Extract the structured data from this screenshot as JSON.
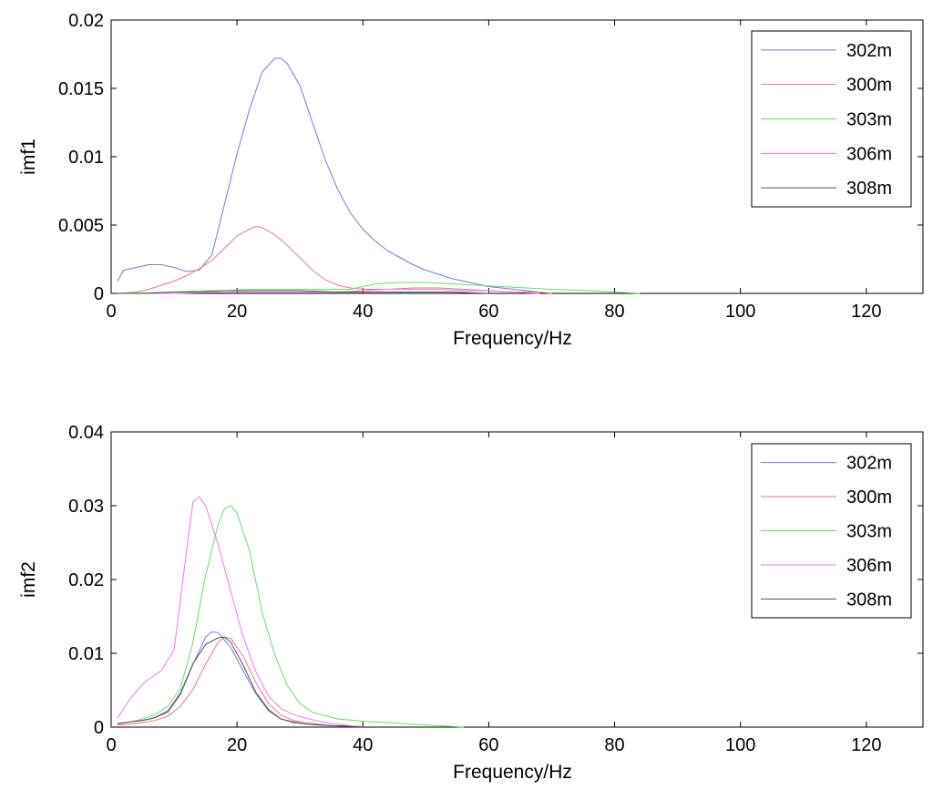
{
  "chart_data": [
    {
      "type": "line",
      "xlabel": "Frequency/Hz",
      "ylabel": "imf1",
      "xlim": [
        0,
        129
      ],
      "ylim": [
        0,
        0.02
      ],
      "xticks": [
        0,
        20,
        40,
        60,
        80,
        100,
        120
      ],
      "yticks": [
        0,
        0.005,
        0.01,
        0.015,
        0.02
      ],
      "ytick_labels": [
        "0",
        "0.005",
        "0.01",
        "0.015",
        "0.02"
      ],
      "grid": false,
      "legend_position": "top-right",
      "series": [
        {
          "name": "302m",
          "color": "#7777dd",
          "x": [
            1,
            2,
            4,
            6,
            8,
            10,
            12,
            14,
            16,
            18,
            20,
            22,
            24,
            26,
            27,
            28,
            30,
            32,
            34,
            36,
            38,
            40,
            42,
            44,
            46,
            48,
            50,
            52,
            54,
            56,
            58,
            60,
            62,
            64,
            66,
            68
          ],
          "y": [
            0.0009,
            0.0017,
            0.0019,
            0.0021,
            0.0021,
            0.0019,
            0.0016,
            0.0017,
            0.0028,
            0.0065,
            0.0102,
            0.0135,
            0.0162,
            0.0172,
            0.0172,
            0.0168,
            0.0152,
            0.0125,
            0.0098,
            0.0076,
            0.0059,
            0.0047,
            0.0038,
            0.0031,
            0.0026,
            0.0021,
            0.0017,
            0.0014,
            0.0011,
            0.0009,
            0.0007,
            0.0005,
            0.0004,
            0.0003,
            0.0002,
            0.0001
          ]
        },
        {
          "name": "300m",
          "color": "#ee7777",
          "x": [
            1,
            4,
            6,
            8,
            10,
            12,
            14,
            16,
            18,
            20,
            22,
            23,
            24,
            26,
            28,
            30,
            32,
            34,
            36,
            38,
            40,
            44,
            48,
            52,
            56,
            60,
            64,
            68,
            70
          ],
          "y": [
            0,
            0.0001,
            0.0003,
            0.0006,
            0.0009,
            0.0013,
            0.0018,
            0.0024,
            0.0033,
            0.0042,
            0.0047,
            0.0049,
            0.0048,
            0.0043,
            0.0035,
            0.0026,
            0.0017,
            0.001,
            0.0006,
            0.0004,
            0.0003,
            0.0003,
            0.0004,
            0.0004,
            0.0003,
            0.0002,
            0.0001,
            0.0001,
            0
          ]
        },
        {
          "name": "303m",
          "color": "#66dd66",
          "x": [
            1,
            10,
            14,
            18,
            22,
            26,
            30,
            34,
            38,
            42,
            46,
            50,
            54,
            58,
            62,
            66,
            70,
            76,
            80,
            84
          ],
          "y": [
            0,
            0.0001,
            0.0002,
            0.0002,
            0.0003,
            0.0003,
            0.0003,
            0.0003,
            0.0003,
            0.0007,
            0.0008,
            0.0008,
            0.0007,
            0.0006,
            0.0005,
            0.0004,
            0.0003,
            0.0002,
            0.0001,
            0
          ]
        },
        {
          "name": "306m",
          "color": "#ee77ee",
          "x": [
            1,
            10,
            20,
            30,
            36,
            40,
            44,
            48,
            52,
            56,
            60,
            64,
            68
          ],
          "y": [
            0,
            0,
            0.0001,
            0.0001,
            0.0001,
            0.0002,
            0.0003,
            0.0003,
            0.0003,
            0.0002,
            0.0002,
            0.0001,
            0
          ]
        },
        {
          "name": "308m",
          "color": "#555555",
          "x": [
            1,
            6,
            10,
            14,
            18,
            22,
            26,
            30,
            36,
            40,
            44,
            48,
            54,
            60
          ],
          "y": [
            0,
            0,
            0.0001,
            0.0001,
            0.0002,
            0.0002,
            0.0002,
            0.0002,
            0.0001,
            0.0001,
            0.0001,
            0.0001,
            0.0001,
            0
          ]
        }
      ]
    },
    {
      "type": "line",
      "xlabel": "Frequency/Hz",
      "ylabel": "imf2",
      "xlim": [
        0,
        129
      ],
      "ylim": [
        0,
        0.04
      ],
      "xticks": [
        0,
        20,
        40,
        60,
        80,
        100,
        120
      ],
      "yticks": [
        0,
        0.01,
        0.02,
        0.03,
        0.04
      ],
      "ytick_labels": [
        "0",
        "0.01",
        "0.02",
        "0.03",
        "0.04"
      ],
      "grid": false,
      "legend_position": "top-right",
      "series": [
        {
          "name": "302m",
          "color": "#7777dd",
          "x": [
            1,
            3,
            5,
            7,
            9,
            11,
            13,
            15,
            16,
            17,
            19,
            21,
            23,
            25,
            27,
            29,
            31,
            33,
            35,
            40
          ],
          "y": [
            0.0004,
            0.0007,
            0.0009,
            0.0013,
            0.002,
            0.0044,
            0.0085,
            0.0122,
            0.0129,
            0.0128,
            0.0108,
            0.0076,
            0.0045,
            0.0022,
            0.0011,
            0.0006,
            0.0004,
            0.0003,
            0.0002,
            0.0001
          ]
        },
        {
          "name": "300m",
          "color": "#ee7777",
          "x": [
            1,
            3,
            5,
            7,
            9,
            11,
            13,
            15,
            17,
            18,
            19,
            21,
            23,
            25,
            27,
            29,
            31,
            33,
            35,
            40
          ],
          "y": [
            0.0003,
            0.0004,
            0.0006,
            0.0009,
            0.0015,
            0.0028,
            0.0051,
            0.0085,
            0.0115,
            0.0122,
            0.012,
            0.0096,
            0.006,
            0.0032,
            0.0016,
            0.0009,
            0.0006,
            0.0004,
            0.0002,
            0.0001
          ]
        },
        {
          "name": "303m",
          "color": "#66dd66",
          "x": [
            1,
            3,
            5,
            7,
            9,
            11,
            13,
            15,
            17,
            18,
            19,
            20,
            22,
            24,
            26,
            28,
            30,
            32,
            36,
            40,
            46,
            50,
            56
          ],
          "y": [
            0.0004,
            0.0007,
            0.0011,
            0.0017,
            0.0028,
            0.0052,
            0.0115,
            0.0205,
            0.0275,
            0.0296,
            0.03,
            0.029,
            0.0238,
            0.0155,
            0.0098,
            0.0056,
            0.0032,
            0.002,
            0.0011,
            0.0008,
            0.0005,
            0.0003,
            0
          ]
        },
        {
          "name": "306m",
          "color": "#ee77ee",
          "x": [
            1,
            3,
            5,
            6,
            8,
            10,
            12,
            13,
            14,
            15,
            17,
            19,
            21,
            23,
            25,
            27,
            29,
            31,
            33,
            35,
            38
          ],
          "y": [
            0.0012,
            0.0038,
            0.0058,
            0.0065,
            0.0077,
            0.0105,
            0.024,
            0.0305,
            0.0312,
            0.03,
            0.0248,
            0.0184,
            0.0122,
            0.0075,
            0.0042,
            0.0025,
            0.0017,
            0.0012,
            0.0008,
            0.0005,
            0.0002
          ]
        },
        {
          "name": "308m",
          "color": "#555555",
          "x": [
            1,
            3,
            5,
            7,
            9,
            11,
            13,
            15,
            17,
            18,
            19,
            21,
            23,
            25,
            27,
            29,
            31,
            33,
            35,
            38
          ],
          "y": [
            0.0005,
            0.0007,
            0.0009,
            0.0013,
            0.0022,
            0.0046,
            0.0086,
            0.0112,
            0.0121,
            0.0122,
            0.0115,
            0.0084,
            0.0047,
            0.0024,
            0.0011,
            0.0007,
            0.0004,
            0.0003,
            0.0002,
            0.0001
          ]
        }
      ]
    }
  ]
}
